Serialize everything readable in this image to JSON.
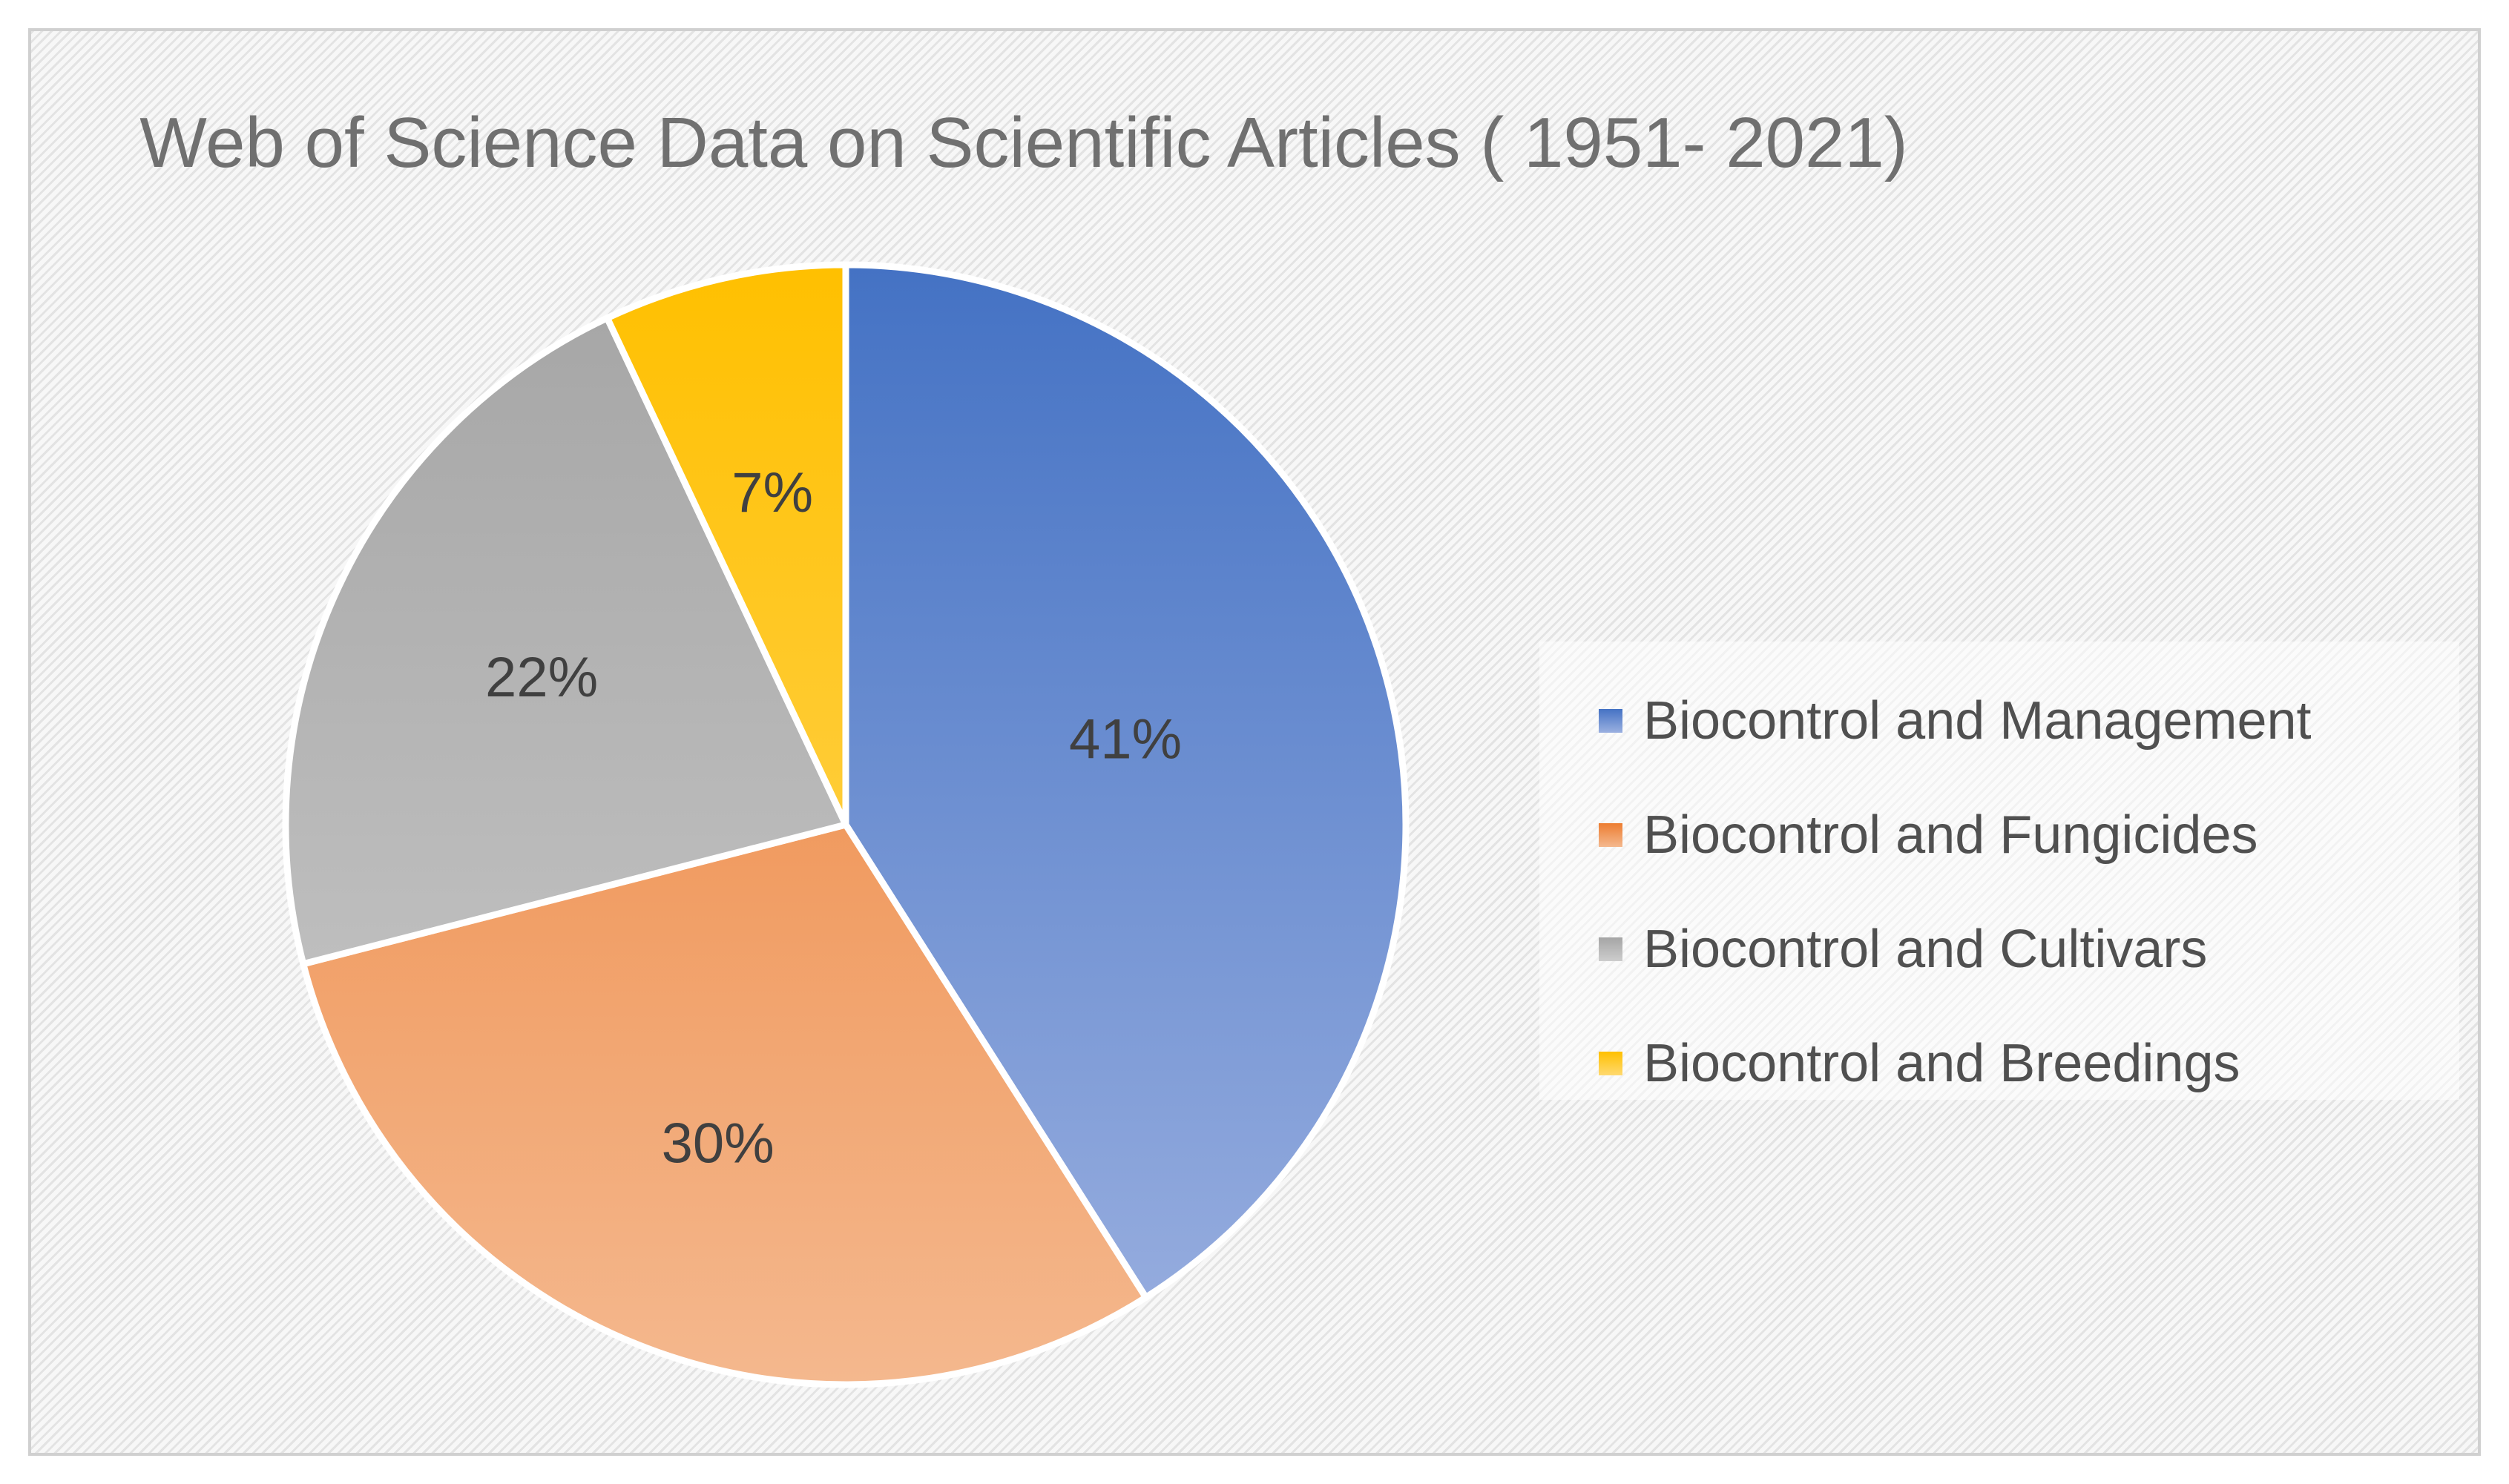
{
  "chart_data": {
    "type": "pie",
    "title": "Web of Science Data on Scientific Articles ( 1951- 2021)",
    "categories": [
      "Biocontrol and Management",
      "Biocontrol and Fungicides",
      "Biocontrol and Cultivars",
      "Biocontrol and Breedings"
    ],
    "values": [
      41,
      30,
      22,
      7
    ],
    "labels": [
      "41%",
      "30%",
      "22%",
      "7%"
    ],
    "colors_top": [
      "#4472c4",
      "#ed7d31",
      "#a5a5a5",
      "#ffc000"
    ],
    "colors_bottom": [
      "#9bb0e0",
      "#f4b88e",
      "#cdcdcd",
      "#ffd970"
    ],
    "legend_position": "right"
  }
}
